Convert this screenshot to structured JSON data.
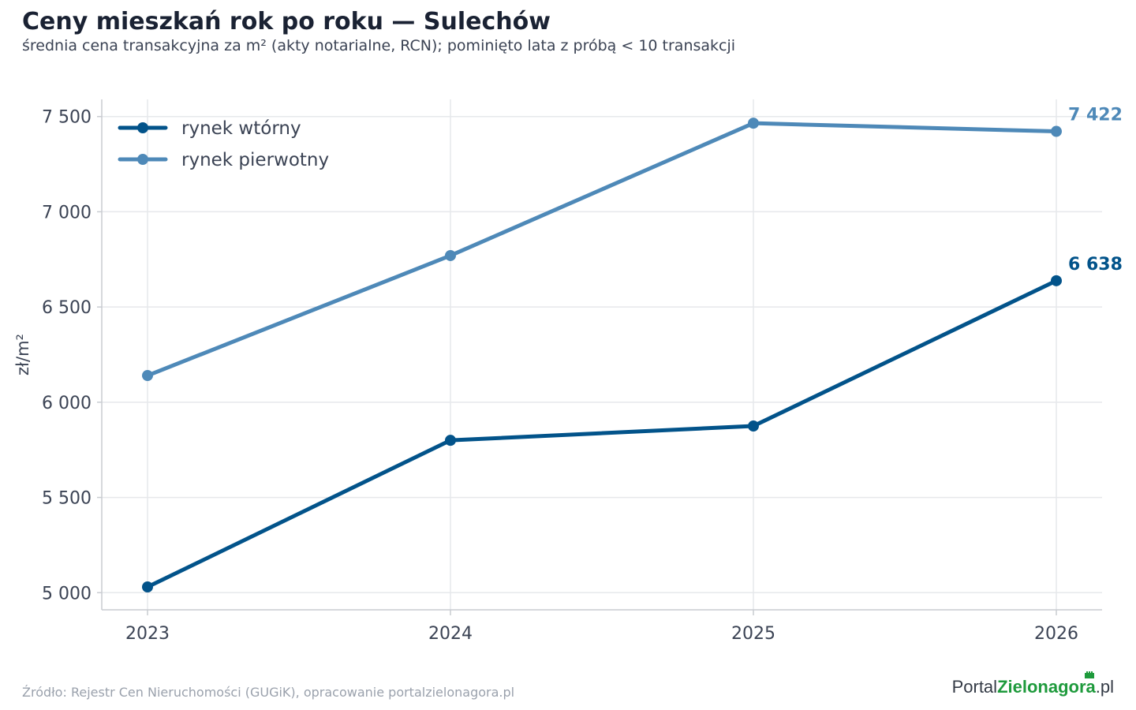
{
  "header": {
    "title": "Ceny mieszkań rok po roku — Sulechów",
    "subtitle": "średnia cena transakcyjna za m² (akty notarialne, RCN); pominięto lata z próbą < 10 transakcji"
  },
  "footer": {
    "source": "Źródło: Rejestr Cen Nieruchomości (GUGiK), opracowanie portalzielonagora.pl",
    "logo_part1": "Portal",
    "logo_part2": "Zielonagora",
    "logo_part3": ".pl"
  },
  "chart_data": {
    "type": "line",
    "x": [
      2023,
      2024,
      2025,
      2026
    ],
    "xticks": [
      "2023",
      "2024",
      "2025",
      "2026"
    ],
    "ylabel": "zł/m²",
    "ylim": [
      4910,
      7590
    ],
    "yticks": [
      5000,
      5500,
      6000,
      6500,
      7000,
      7500
    ],
    "ytick_labels": [
      "5 000",
      "5 500",
      "6 000",
      "6 500",
      "7 000",
      "7 500"
    ],
    "grid": true,
    "legend_position": "top-left",
    "series": [
      {
        "name": "rynek wtórny",
        "color": "#02538a",
        "values": [
          5030,
          5800,
          5875,
          6638
        ],
        "end_label": "6 638"
      },
      {
        "name": "rynek pierwotny",
        "color": "#4e89b8",
        "values": [
          6140,
          6770,
          7465,
          7422
        ],
        "end_label": "7 422"
      }
    ]
  }
}
